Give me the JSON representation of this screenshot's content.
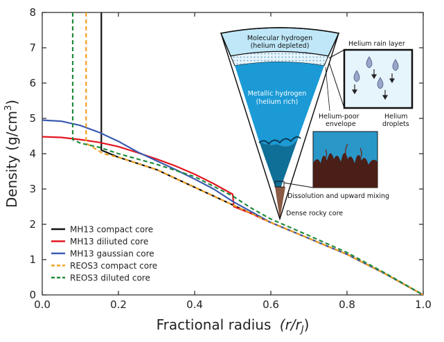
{
  "chart_data": {
    "type": "line",
    "title": "",
    "xlabel": "Fractional radius",
    "xlabel_math": "(r/r",
    "xlabel_sub": "J",
    "xlabel_close": ")",
    "ylabel": "Density (g/cm",
    "ylabel_sup": "3",
    "ylabel_close": ")",
    "xlim": [
      0,
      1.0
    ],
    "ylim": [
      0,
      8
    ],
    "xticks": [
      "0.0",
      "0.2",
      "0.4",
      "0.6",
      "0.8",
      "1.0"
    ],
    "yticks": [
      "0",
      "1",
      "2",
      "3",
      "4",
      "5",
      "6",
      "7",
      "8"
    ],
    "grid": false,
    "legend_position": "bottom-left",
    "series": [
      {
        "name": "MH13 compact core",
        "color": "#111111",
        "dash": "solid",
        "points": [
          [
            0.155,
            8.0
          ],
          [
            0.155,
            4.1
          ],
          [
            0.2,
            3.9
          ],
          [
            0.3,
            3.55
          ],
          [
            0.4,
            3.05
          ],
          [
            0.5,
            2.55
          ],
          [
            0.6,
            2.05
          ],
          [
            0.7,
            1.6
          ],
          [
            0.8,
            1.15
          ],
          [
            0.9,
            0.6
          ],
          [
            1.0,
            0.0
          ]
        ]
      },
      {
        "name": "MH13 diliuted core",
        "color": "#e3151e",
        "dash": "solid",
        "points": [
          [
            0.0,
            4.48
          ],
          [
            0.05,
            4.46
          ],
          [
            0.1,
            4.4
          ],
          [
            0.15,
            4.32
          ],
          [
            0.2,
            4.2
          ],
          [
            0.25,
            4.03
          ],
          [
            0.3,
            3.85
          ],
          [
            0.35,
            3.65
          ],
          [
            0.4,
            3.42
          ],
          [
            0.45,
            3.15
          ],
          [
            0.5,
            2.85
          ],
          [
            0.503,
            2.5
          ],
          [
            0.55,
            2.3
          ],
          [
            0.6,
            2.05
          ],
          [
            0.7,
            1.6
          ],
          [
            0.8,
            1.15
          ],
          [
            0.9,
            0.6
          ],
          [
            1.0,
            0.0
          ]
        ]
      },
      {
        "name": "MH13 gaussian core",
        "color": "#3a5bb0",
        "dash": "solid",
        "points": [
          [
            0.0,
            4.95
          ],
          [
            0.05,
            4.92
          ],
          [
            0.1,
            4.8
          ],
          [
            0.15,
            4.6
          ],
          [
            0.2,
            4.35
          ],
          [
            0.25,
            4.05
          ],
          [
            0.3,
            3.8
          ],
          [
            0.35,
            3.55
          ],
          [
            0.4,
            3.28
          ],
          [
            0.45,
            3.0
          ],
          [
            0.5,
            2.65
          ],
          [
            0.6,
            2.05
          ],
          [
            0.7,
            1.6
          ],
          [
            0.8,
            1.15
          ],
          [
            0.9,
            0.6
          ],
          [
            1.0,
            0.0
          ]
        ]
      },
      {
        "name": "REOS3 compact core",
        "color": "#f0a020",
        "dash": "dashed",
        "points": [
          [
            0.115,
            8.0
          ],
          [
            0.115,
            4.3
          ],
          [
            0.16,
            4.0
          ],
          [
            0.2,
            3.9
          ],
          [
            0.3,
            3.55
          ],
          [
            0.4,
            3.05
          ],
          [
            0.5,
            2.55
          ],
          [
            0.6,
            2.05
          ],
          [
            0.7,
            1.6
          ],
          [
            0.8,
            1.15
          ],
          [
            0.9,
            0.6
          ],
          [
            1.0,
            0.0
          ]
        ]
      },
      {
        "name": "REOS3 diluted core",
        "color": "#1f8a3a",
        "dash": "dashed",
        "points": [
          [
            0.08,
            8.0
          ],
          [
            0.08,
            4.4
          ],
          [
            0.1,
            4.3
          ],
          [
            0.15,
            4.18
          ],
          [
            0.2,
            4.0
          ],
          [
            0.3,
            3.7
          ],
          [
            0.4,
            3.35
          ],
          [
            0.5,
            2.8
          ],
          [
            0.55,
            2.45
          ],
          [
            0.6,
            2.15
          ],
          [
            0.7,
            1.68
          ],
          [
            0.8,
            1.2
          ],
          [
            0.9,
            0.62
          ],
          [
            1.0,
            0.0
          ]
        ]
      }
    ],
    "inset": {
      "labels": {
        "molecular_1": "Molecular hydrogen",
        "molecular_2": "(helium depleted)",
        "metallic_1": "Metallic hydrogen",
        "metallic_2": "(helium rich)",
        "rain_layer": "Helium rain layer",
        "poor_1": "Helium-poor",
        "poor_2": "envelope",
        "droplets_1": "Helium",
        "droplets_2": "droplets",
        "mixing": "Dissolution and upward mixing",
        "core": "Dense rocky core"
      },
      "colors": {
        "molecular": "#bfe7f7",
        "rain": "#e6f4fb",
        "metallic": "#1b9ad6",
        "deep": "#0f6f96",
        "core": "#8a5a44",
        "mix_dark": "#4a1f17"
      }
    }
  }
}
